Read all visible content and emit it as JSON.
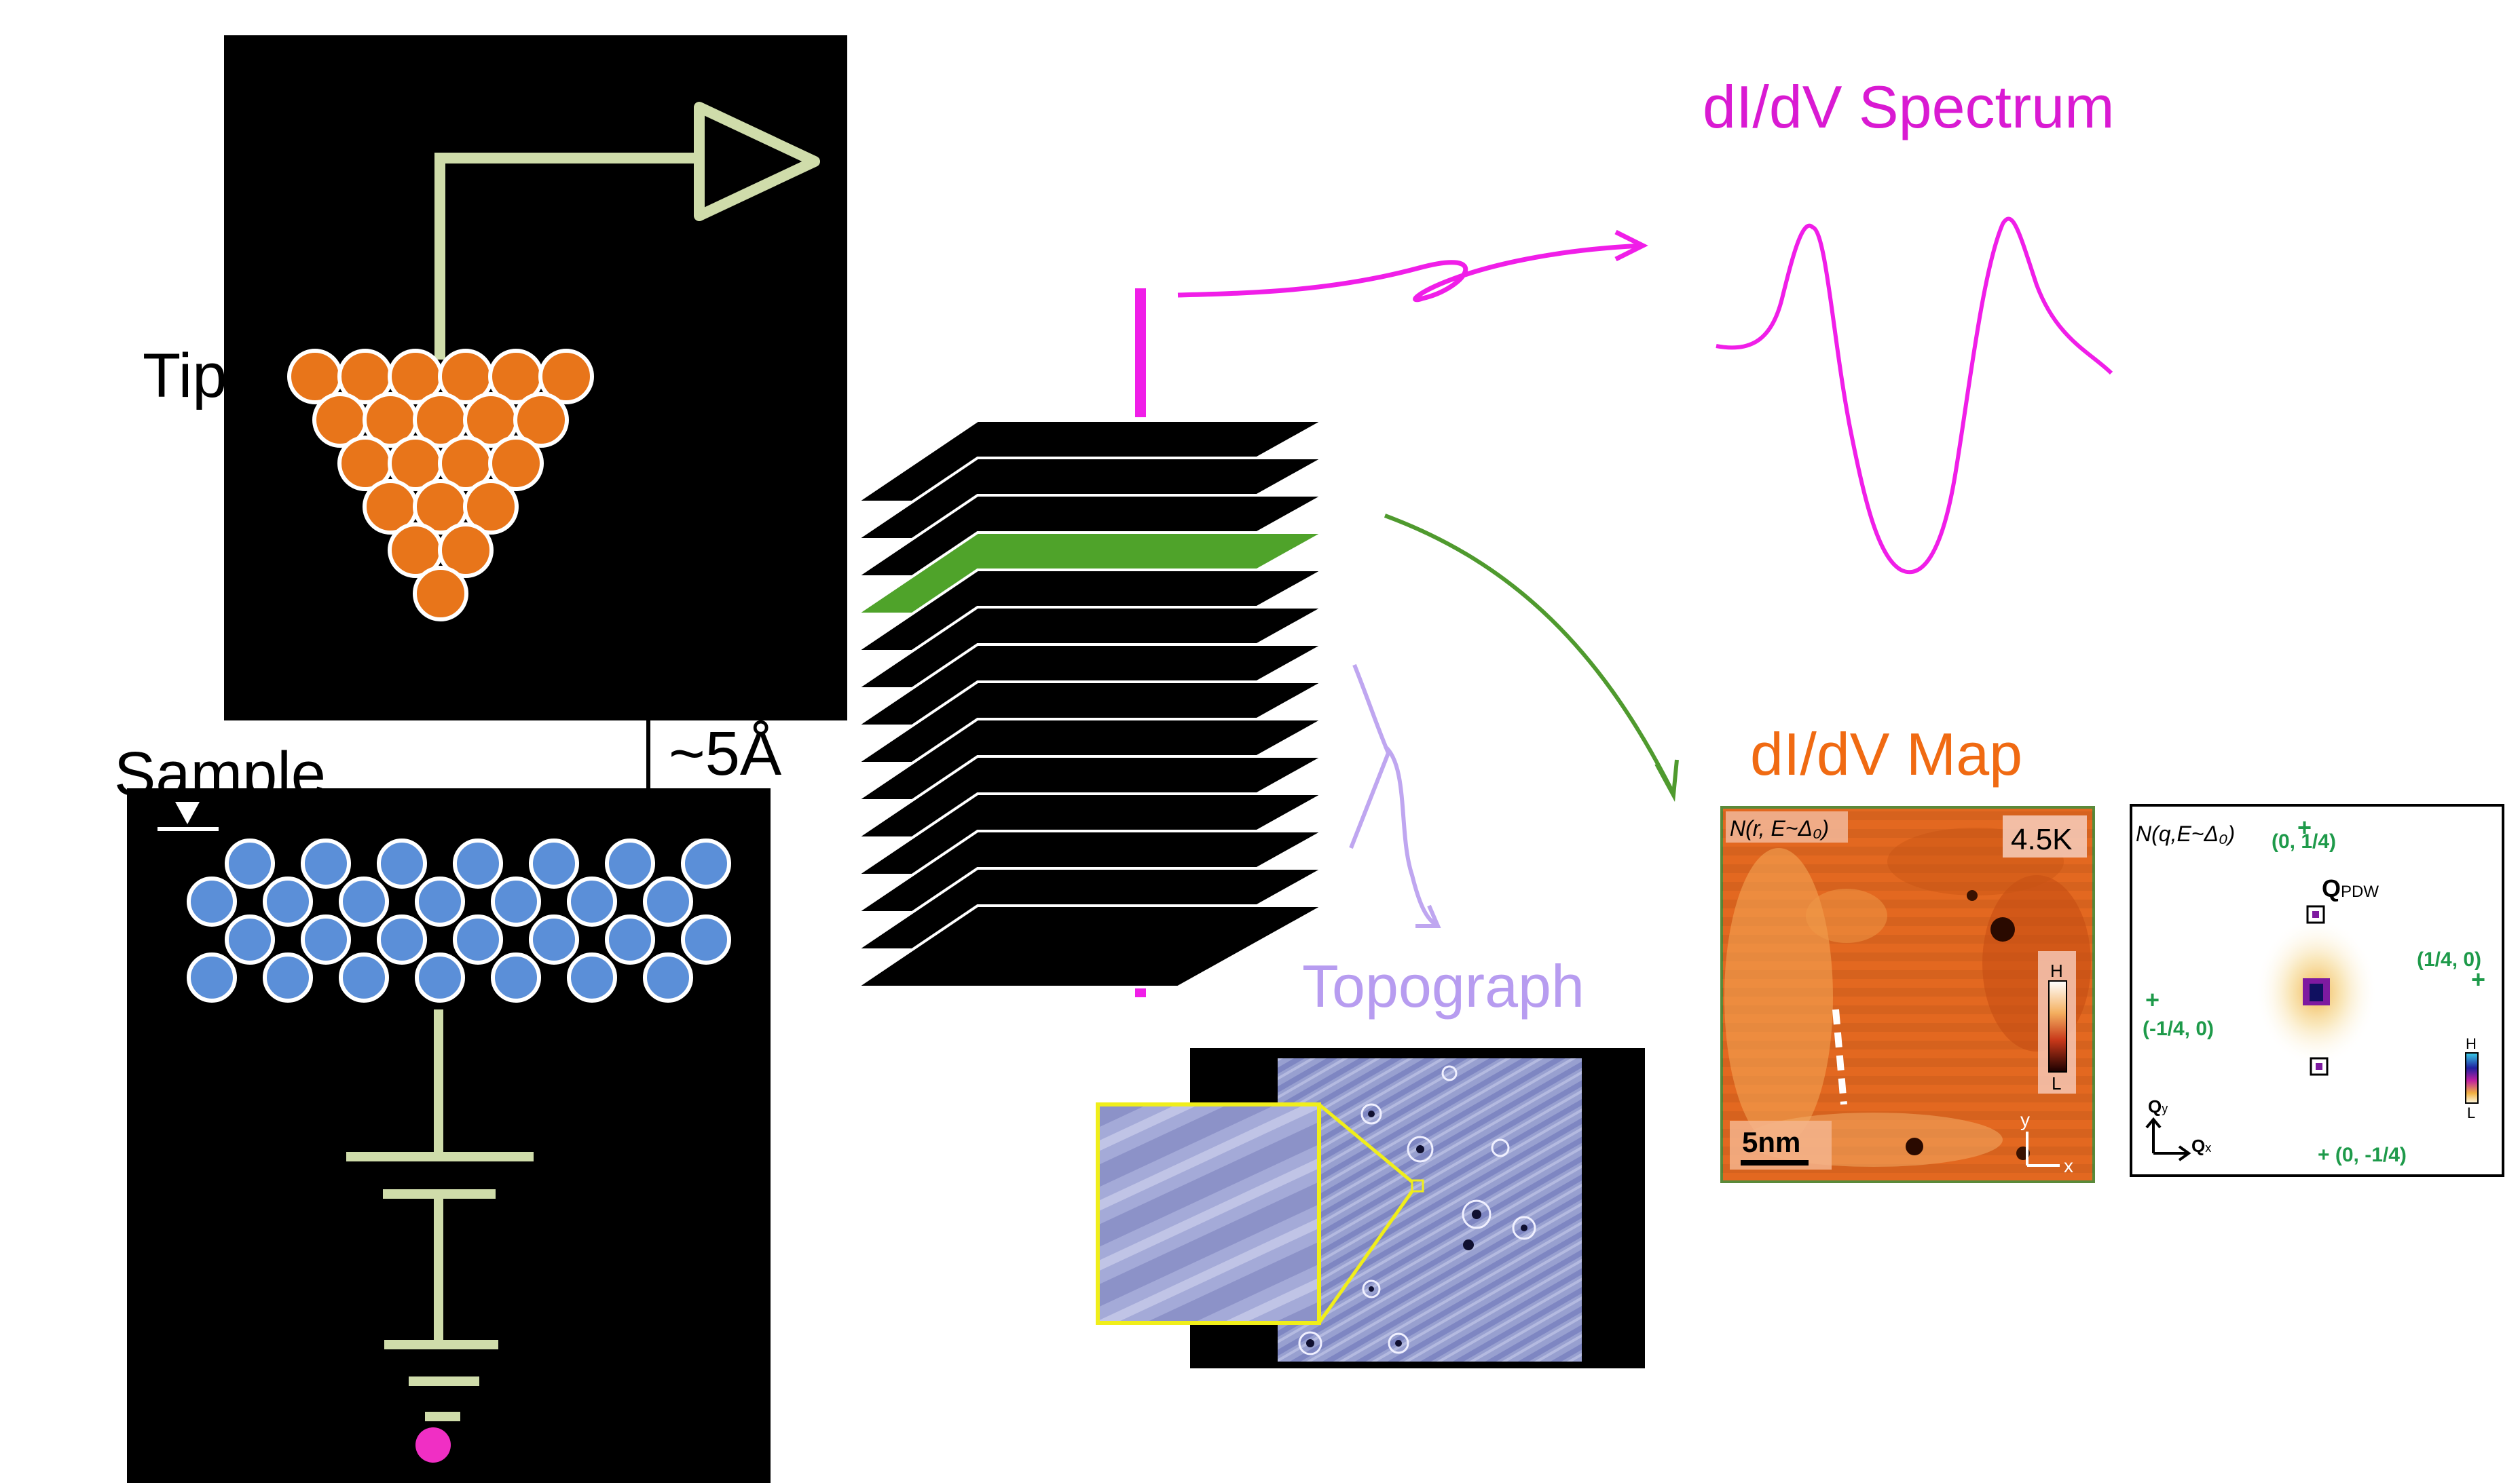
{
  "labels": {
    "tip": "Tip",
    "sample": "Sample",
    "gap": "~5Å",
    "spectrum_title": "dI/dV Spectrum",
    "map_title": "dI/dV Map",
    "topograph_title": "Topograph"
  },
  "map_panel": {
    "corner_label": "N(r, E~Δ₀)",
    "temperature": "4.5K",
    "scale_bar": "5nm",
    "colorbar_high": "H",
    "colorbar_low": "L",
    "axis_y": "y",
    "axis_x": "x"
  },
  "fourier_panel": {
    "corner_label": "N(q,E~Δ₀)",
    "q_label": "Q",
    "q_sub": "PDW",
    "peak_top": "(0, 1/4)",
    "peak_right": "(1/4, 0)",
    "peak_left": "(-1/4, 0)",
    "peak_bottom": "+ (0, -1/4)",
    "axis_qy": "Q",
    "axis_qy_sub": "y",
    "axis_qx": "Q",
    "axis_qx_sub": "x",
    "colorbar_high": "H",
    "colorbar_low": "L"
  },
  "colors": {
    "tip_atom": "#e8751a",
    "sample_atom": "#5b8fd8",
    "wire": "#cfdcaa",
    "spectrum": "#e81ee0",
    "map_arrow": "#4f9a2e",
    "topograph": "#bfa6f0",
    "highlight_layer": "#4fa32a",
    "map_title": "#f06a12",
    "fourier_text": "#1e9a4a",
    "zoom_frame": "#f0ee1a",
    "bias_dot": "#f02fc4"
  },
  "layers": {
    "count": 14,
    "highlighted_index": 3
  }
}
